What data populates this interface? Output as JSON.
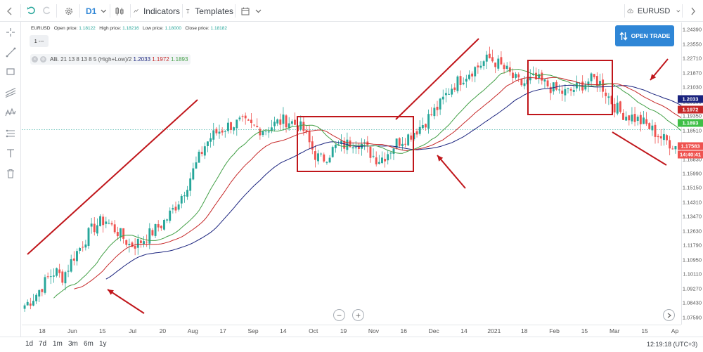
{
  "toolbar": {
    "timeframe": "D1",
    "indicators_label": "Indicators",
    "templates_label": "Templates",
    "symbol": "EURUSD"
  },
  "legend": {
    "symbol": "EURUSD",
    "open_label": "Open price:",
    "open_value": "1.18122",
    "high_label": "High price:",
    "high_value": "1.18216",
    "low_label": "Low price:",
    "low_value": "1.18000",
    "close_label": "Close price:",
    "close_value": "1.18182",
    "interval": "1 ---"
  },
  "indicator": {
    "name": "Alli.",
    "params": "21 13 8 13 8 5 (High+Low)/2",
    "jaw_value": "1.2033",
    "teeth_value": "1.1972",
    "lips_value": "1.1893"
  },
  "open_trade_label": "OPEN TRADE",
  "colors": {
    "up": "#26a69a",
    "down": "#ef5350",
    "jaw": "#1a237e",
    "teeth": "#c62828",
    "lips": "#43a047",
    "annotation": "#c0161b",
    "accent": "#2f86d6"
  },
  "bottom": {
    "periods": [
      "1d",
      "7d",
      "1m",
      "3m",
      "6m",
      "1y"
    ],
    "clock": "12:19:18 (UTC+3)"
  },
  "chart_data": {
    "type": "candlestick",
    "symbol": "EURUSD",
    "timeframe": "D1",
    "x_tick_labels": [
      "18",
      "Jun",
      "15",
      "Jul",
      "20",
      "Aug",
      "17",
      "Sep",
      "14",
      "Oct",
      "19",
      "Nov",
      "16",
      "Dec",
      "14",
      "2021",
      "18",
      "Feb",
      "15",
      "Mar",
      "15",
      "Ap"
    ],
    "y_tick_labels": [
      "1.24390",
      "1.23550",
      "1.22710",
      "1.21870",
      "1.21030",
      "1.20190",
      "1.19350",
      "1.18510",
      "1.17670",
      "1.16830",
      "1.15990",
      "1.15150",
      "1.14310",
      "1.13470",
      "1.12630",
      "1.11790",
      "1.10950",
      "1.10110",
      "1.09270",
      "1.08430",
      "1.07590"
    ],
    "ylim": [
      1.0717,
      1.2481
    ],
    "current_price": "1.17583",
    "countdown": "14:40:41",
    "price_series": [
      1.083,
      1.086,
      1.09,
      1.095,
      1.1,
      1.103,
      1.099,
      1.105,
      1.112,
      1.117,
      1.123,
      1.128,
      1.131,
      1.133,
      1.129,
      1.126,
      1.122,
      1.118,
      1.119,
      1.121,
      1.124,
      1.127,
      1.13,
      1.134,
      1.139,
      1.145,
      1.152,
      1.16,
      1.168,
      1.176,
      1.181,
      1.184,
      1.186,
      1.188,
      1.189,
      1.19,
      1.188,
      1.187,
      1.186,
      1.186,
      1.188,
      1.19,
      1.191,
      1.19,
      1.188,
      1.185,
      1.177,
      1.17,
      1.168,
      1.171,
      1.175,
      1.176,
      1.177,
      1.179,
      1.178,
      1.175,
      1.171,
      1.168,
      1.17,
      1.174,
      1.178,
      1.18,
      1.182,
      1.185,
      1.188,
      1.192,
      1.196,
      1.2,
      1.206,
      1.211,
      1.214,
      1.217,
      1.22,
      1.222,
      1.225,
      1.227,
      1.225,
      1.222,
      1.219,
      1.215,
      1.212,
      1.213,
      1.215,
      1.214,
      1.212,
      1.21,
      1.208,
      1.207,
      1.208,
      1.21,
      1.212,
      1.214,
      1.215,
      1.212,
      1.206,
      1.2,
      1.196,
      1.194,
      1.193,
      1.191,
      1.189,
      1.186,
      1.183,
      1.18,
      1.178,
      1.176
    ],
    "alligator": {
      "jaw_value": 1.2033,
      "teeth_value": 1.1972,
      "lips_value": 1.1893
    }
  }
}
